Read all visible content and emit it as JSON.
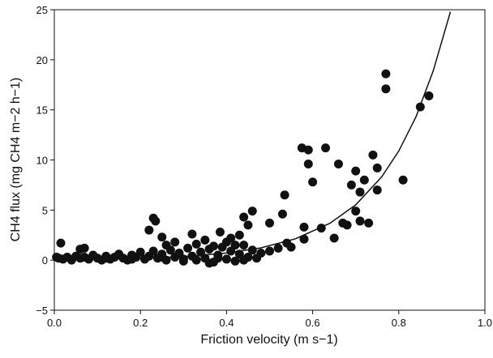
{
  "chart_data": {
    "type": "scatter",
    "x_label": "Friction velocity (m s−1)",
    "y_label": "CH4 flux (mg CH4 m−2 h−1)",
    "xlim": [
      0,
      1
    ],
    "ylim": [
      -5,
      25
    ],
    "xticks": [
      {
        "value": 0,
        "label": "0.0"
      },
      0.2,
      0.4,
      0.6,
      0.8,
      {
        "value": 1,
        "label": "1.0"
      }
    ],
    "yticks": [
      {
        "value": -5,
        "label": "−5"
      },
      0,
      5,
      10,
      15,
      20,
      25
    ],
    "series": [
      {
        "type": "scatter",
        "color": "#111111",
        "x": [
          0.005,
          0.015,
          0.06,
          0.07,
          0.23,
          0.235,
          0.22,
          0.25,
          0.26,
          0.32,
          0.35,
          0.37,
          0.385,
          0.41,
          0.43,
          0.44,
          0.45,
          0.46,
          0.5,
          0.53,
          0.535,
          0.575,
          0.59,
          0.59,
          0.6,
          0.58,
          0.58,
          0.62,
          0.63,
          0.65,
          0.66,
          0.67,
          0.68,
          0.69,
          0.7,
          0.7,
          0.71,
          0.71,
          0.72,
          0.73,
          0.74,
          0.75,
          0.75,
          0.77,
          0.77,
          0.81,
          0.85,
          0.87,
          0.54,
          0.55,
          0.52,
          0.5,
          0.48,
          0.01,
          0.02,
          0.03,
          0.04,
          0.05,
          0.06,
          0.08,
          0.09,
          0.1,
          0.11,
          0.12,
          0.13,
          0.14,
          0.15,
          0.16,
          0.17,
          0.18,
          0.19,
          0.2,
          0.21,
          0.22,
          0.23,
          0.24,
          0.25,
          0.26,
          0.27,
          0.28,
          0.29,
          0.3,
          0.31,
          0.32,
          0.33,
          0.34,
          0.35,
          0.36,
          0.37,
          0.38,
          0.39,
          0.4,
          0.41,
          0.42,
          0.43,
          0.44,
          0.45,
          0.46,
          0.47,
          0.36,
          0.3,
          0.25,
          0.18,
          0.12,
          0.07,
          0.33,
          0.28,
          0.4,
          0.42,
          0.38,
          0.44
        ],
        "values": [
          0.3,
          1.7,
          1.1,
          1.2,
          4.2,
          3.9,
          3.0,
          2.3,
          1.5,
          2.6,
          2.0,
          1.4,
          2.8,
          2.2,
          2.5,
          4.3,
          3.5,
          4.9,
          3.7,
          4.6,
          6.5,
          11.2,
          11.0,
          9.6,
          7.8,
          3.3,
          2.1,
          3.2,
          11.2,
          2.2,
          9.6,
          3.7,
          3.5,
          7.5,
          8.9,
          4.9,
          3.9,
          6.8,
          8.0,
          3.7,
          10.5,
          9.2,
          7.0,
          18.6,
          17.1,
          8.0,
          15.3,
          16.4,
          1.7,
          1.3,
          1.2,
          0.9,
          0.7,
          0.2,
          0.1,
          0.3,
          0.0,
          0.4,
          0.2,
          0.1,
          0.5,
          0.2,
          0.0,
          0.4,
          0.1,
          0.3,
          0.6,
          0.2,
          0.0,
          0.5,
          0.3,
          0.8,
          0.1,
          0.4,
          0.9,
          0.2,
          0.6,
          0.0,
          1.0,
          0.3,
          0.7,
          0.1,
          1.2,
          0.4,
          0.0,
          0.8,
          0.2,
          1.1,
          -0.2,
          0.5,
          1.3,
          0.1,
          0.9,
          -0.1,
          0.6,
          1.5,
          0.3,
          1.0,
          0.2,
          -0.3,
          -0.1,
          0.3,
          0.1,
          0.2,
          0.3,
          1.6,
          1.8,
          1.8,
          1.5,
          0.2,
          0.0
        ]
      },
      {
        "type": "line",
        "color": "#111111",
        "x": [
          0,
          0.08,
          0.16,
          0.24,
          0.32,
          0.4,
          0.48,
          0.56,
          0.64,
          0.7,
          0.76,
          0.8,
          0.84,
          0.88,
          0.92
        ],
        "values": [
          0.05,
          0.08,
          0.14,
          0.24,
          0.41,
          0.71,
          1.23,
          2.13,
          3.68,
          5.52,
          8.3,
          10.9,
          14.3,
          18.9,
          24.8
        ]
      }
    ]
  }
}
